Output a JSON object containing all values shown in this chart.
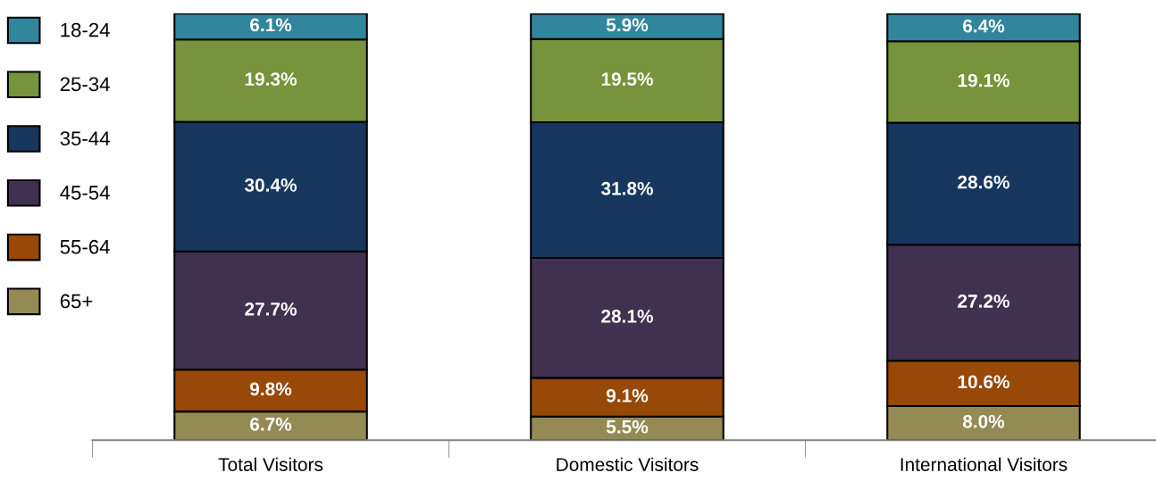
{
  "chart_data": {
    "type": "bar",
    "stacked": true,
    "categories": [
      "Total Visitors",
      "Domestic Visitors",
      "International Visitors"
    ],
    "ylim": [
      0,
      100
    ],
    "tick_labels": "x",
    "legend": "left",
    "grid": false,
    "series": [
      {
        "name": "65+",
        "color": "#948b54",
        "values": [
          6.7,
          5.5,
          8.0
        ],
        "value_labels": [
          "6.7%",
          "5.5%",
          "8.0%"
        ]
      },
      {
        "name": "55-64",
        "color": "#984807",
        "values": [
          9.8,
          9.1,
          10.6
        ],
        "value_labels": [
          "9.8%",
          "9.1%",
          "10.6%"
        ]
      },
      {
        "name": "45-54",
        "color": "#403151",
        "values": [
          27.7,
          28.1,
          27.2
        ],
        "value_labels": [
          "27.7%",
          "28.1%",
          "27.2%"
        ]
      },
      {
        "name": "35-44",
        "color": "#17375e",
        "values": [
          30.4,
          31.8,
          28.6
        ],
        "value_labels": [
          "30.4%",
          "31.8%",
          "28.6%"
        ]
      },
      {
        "name": "25-34",
        "color": "#77933c",
        "values": [
          19.3,
          19.5,
          19.1
        ],
        "value_labels": [
          "19.3%",
          "19.5%",
          "19.1%"
        ]
      },
      {
        "name": "18-24",
        "color": "#31859c",
        "values": [
          6.1,
          5.9,
          6.4
        ],
        "value_labels": [
          "6.1%",
          "5.9%",
          "6.4%"
        ]
      }
    ]
  }
}
